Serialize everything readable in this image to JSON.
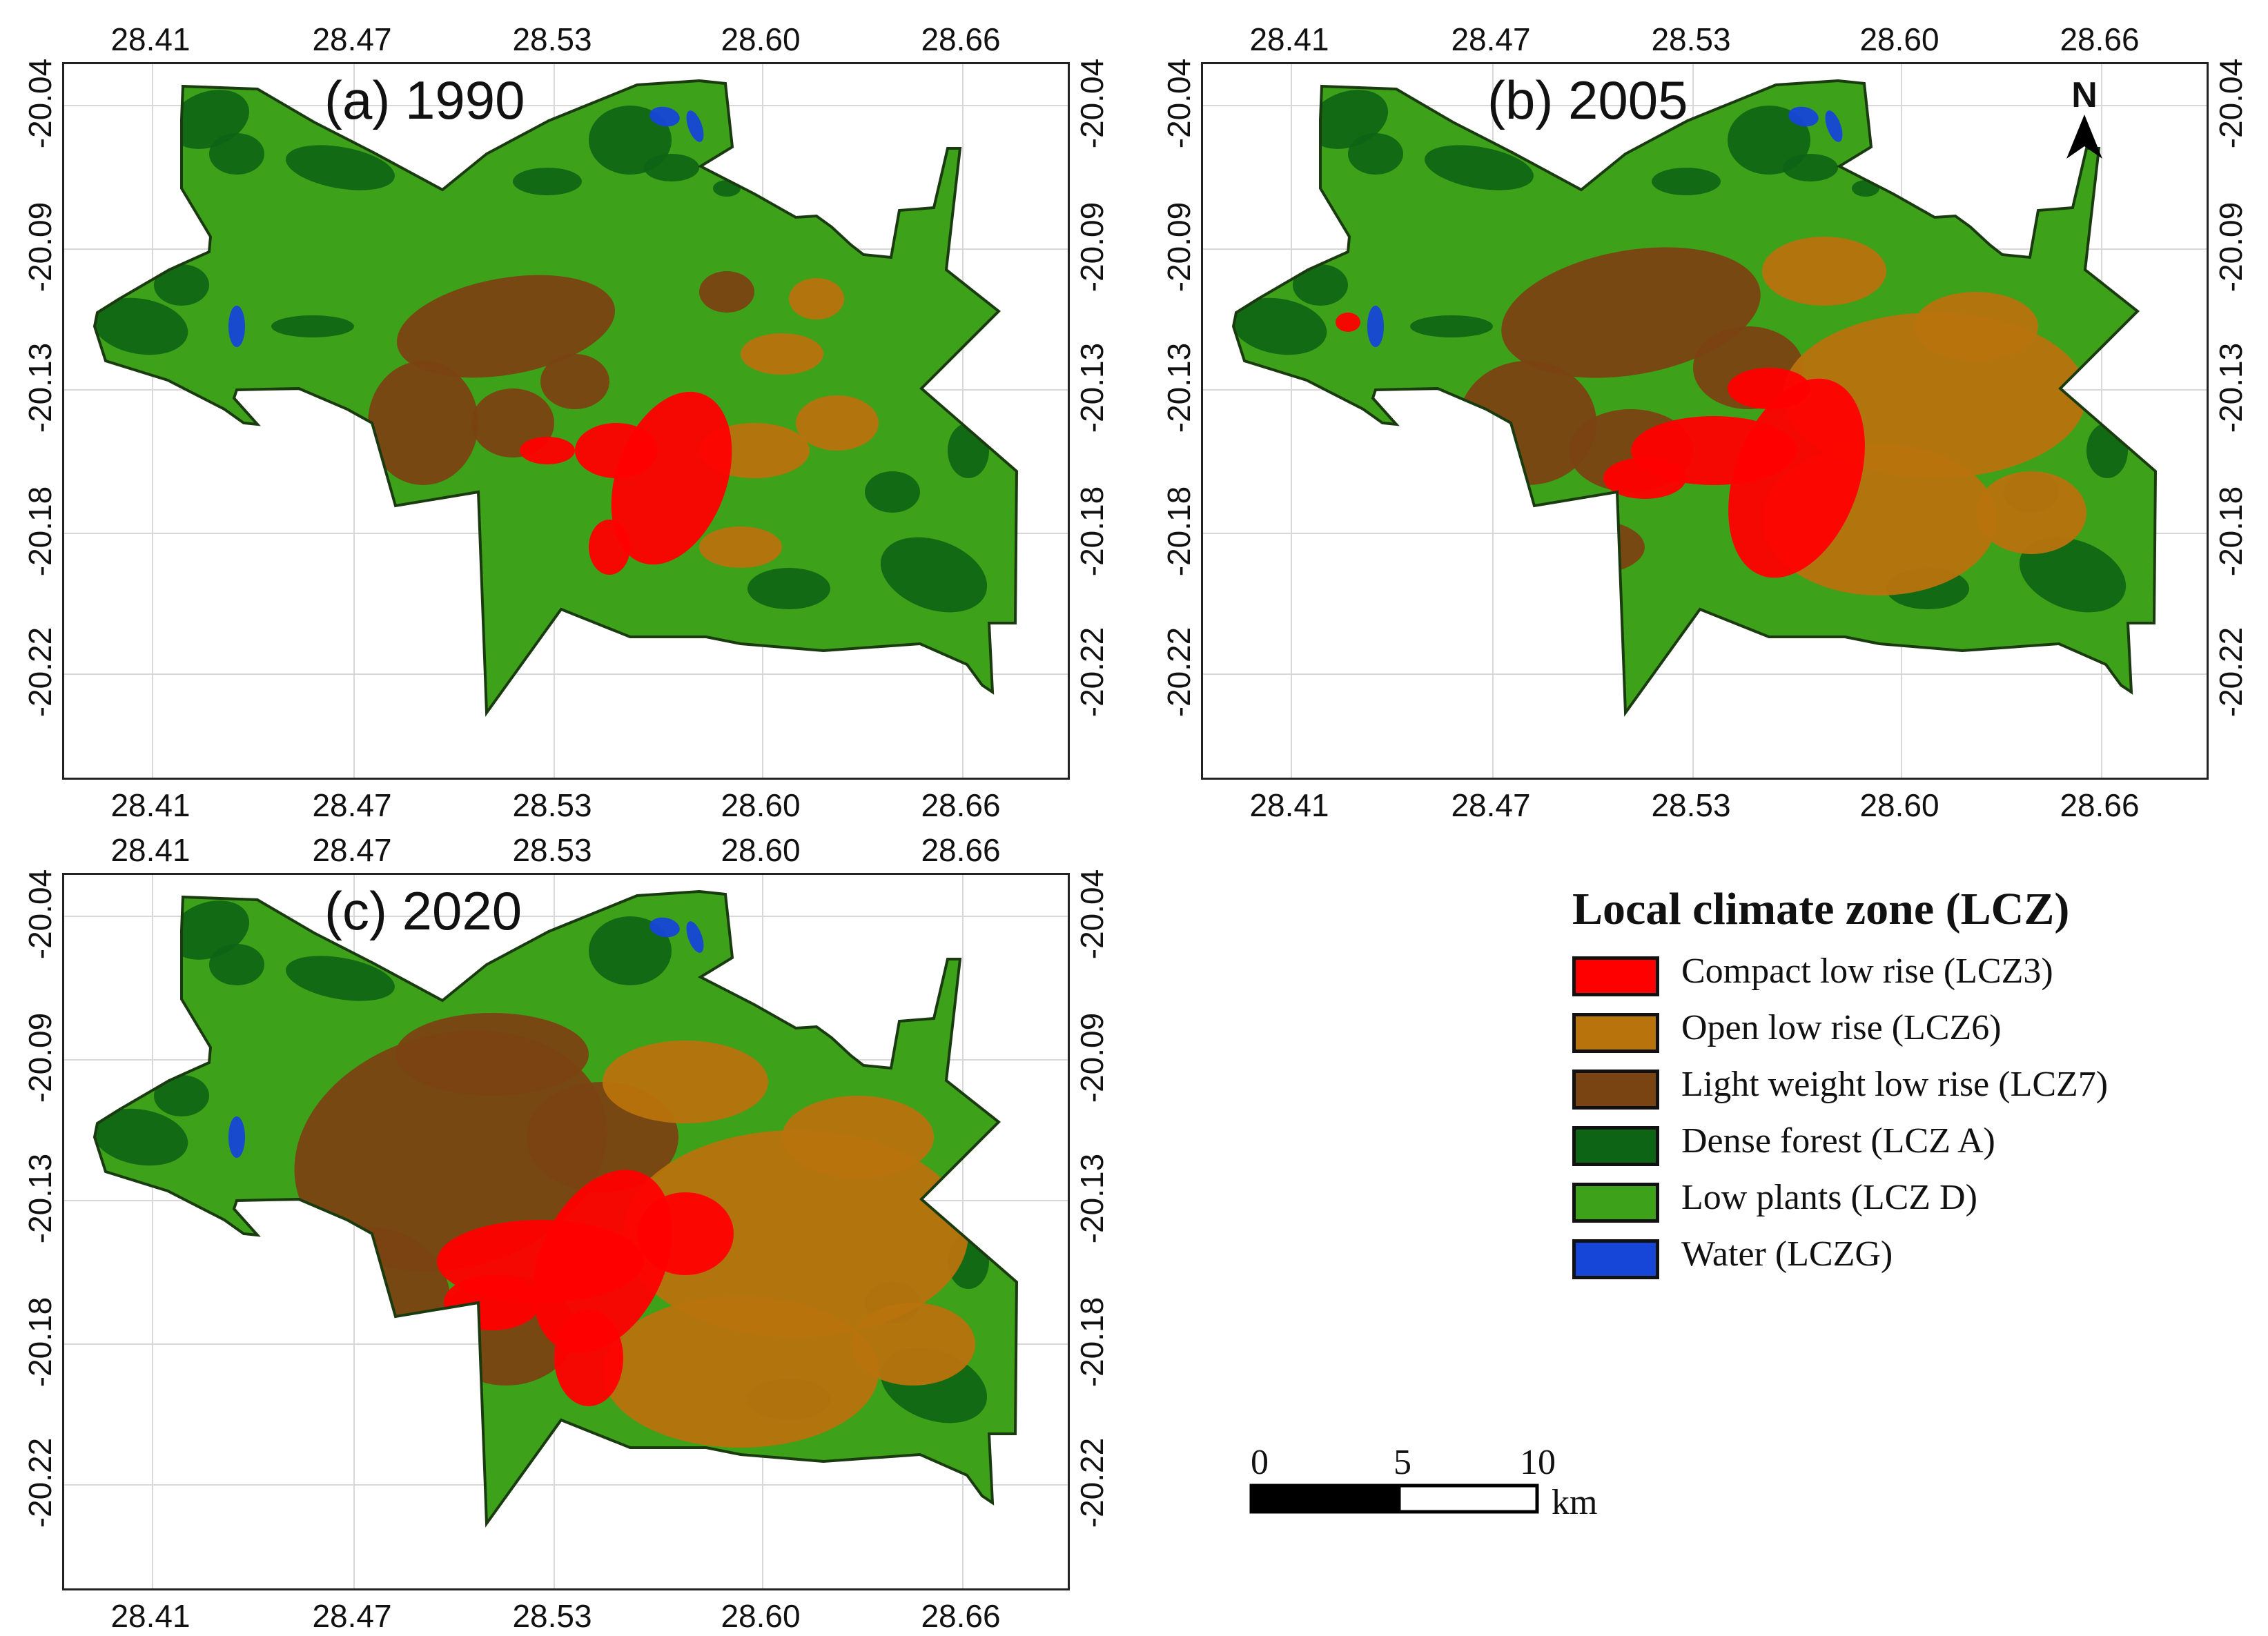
{
  "panels": [
    {
      "title": "(a) 1990"
    },
    {
      "title": "(b) 2005"
    },
    {
      "title": "(c) 2020"
    }
  ],
  "lon_ticks": [
    "28.41",
    "28.47",
    "28.53",
    "28.60",
    "28.66"
  ],
  "lat_ticks": [
    "-20.04",
    "-20.09",
    "-20.13",
    "-20.18",
    "-20.22"
  ],
  "north_arrow": {
    "label": "N"
  },
  "legend": {
    "title": "Local climate zone (LCZ)",
    "items": [
      {
        "label": "Compact low rise (LCZ3)",
        "color": "#ff0000"
      },
      {
        "label": "Open low rise (LCZ6)",
        "color": "#b8730d"
      },
      {
        "label": "Light weight low rise (LCZ7)",
        "color": "#7a4312"
      },
      {
        "label": "Dense forest (LCZ A)",
        "color": "#0d6414"
      },
      {
        "label": "Low plants (LCZ D)",
        "color": "#3ea11a"
      },
      {
        "label": "Water (LCZG)",
        "color": "#1646d8"
      }
    ]
  },
  "scale_bar": {
    "labels": [
      "0",
      "5",
      "10"
    ],
    "unit": "km"
  },
  "class_share_estimate": [
    {
      "year": "1990",
      "compact": 0.05,
      "open": 0.1,
      "lightweight": 0.14,
      "forest": 0.08
    },
    {
      "year": "2005",
      "compact": 0.06,
      "open": 0.22,
      "lightweight": 0.15,
      "forest": 0.07
    },
    {
      "year": "2020",
      "compact": 0.08,
      "open": 0.26,
      "lightweight": 0.22,
      "forest": 0.05
    }
  ]
}
